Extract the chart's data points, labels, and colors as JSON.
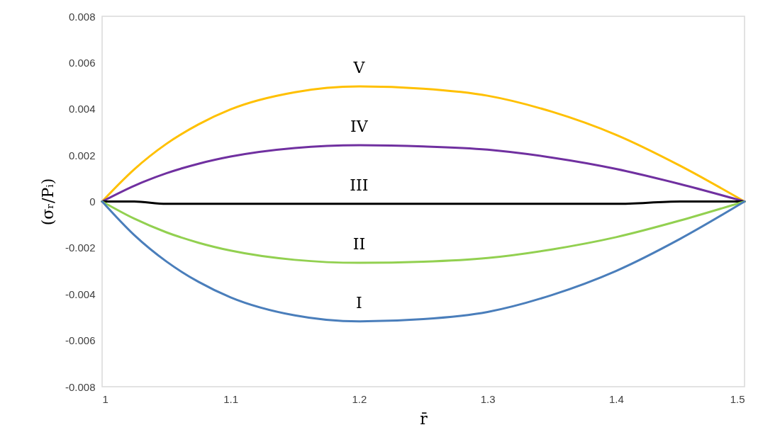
{
  "chart_data": {
    "type": "line",
    "xlabel": "r̄",
    "ylabel": "(σᵣ/Pᵢ)",
    "x": [
      1,
      1.025,
      1.05,
      1.075,
      1.1,
      1.15,
      1.2,
      1.25,
      1.3,
      1.35,
      1.4,
      1.45,
      1.5
    ],
    "series": [
      {
        "name": "V",
        "color": "#ffc000",
        "values": [
          0,
          0.00139,
          0.00249,
          0.00333,
          0.00398,
          0.00472,
          0.00497,
          0.00487,
          0.00457,
          0.00388,
          0.00288,
          0.00154,
          0
        ]
      },
      {
        "name": "IV",
        "color": "#7030a0",
        "values": [
          0,
          0.00068,
          0.00122,
          0.00163,
          0.00194,
          0.00231,
          0.00243,
          0.00238,
          0.00224,
          0.0019,
          0.00141,
          0.00075,
          0
        ]
      },
      {
        "name": "III",
        "color": "#000000",
        "values": [
          0,
          0,
          -0.0001,
          -0.0001,
          -0.0001,
          -0.0001,
          -0.0001,
          -0.0001,
          -0.0001,
          -0.0001,
          -0.0001,
          0,
          0
        ]
      },
      {
        "name": "II",
        "color": "#92d050",
        "values": [
          0,
          -0.00074,
          -0.00133,
          -0.00178,
          -0.00212,
          -0.00252,
          -0.00265,
          -0.0026,
          -0.00244,
          -0.00207,
          -0.00154,
          -0.00082,
          0
        ]
      },
      {
        "name": "I",
        "color": "#4a7ebb",
        "values": [
          0,
          -0.00145,
          -0.00259,
          -0.00347,
          -0.00414,
          -0.00492,
          -0.00518,
          -0.00508,
          -0.00477,
          -0.00404,
          -0.003,
          -0.00161,
          0
        ]
      }
    ],
    "xlim": [
      1,
      1.5
    ],
    "xticks": [
      1,
      1.1,
      1.2,
      1.3,
      1.4,
      1.5
    ],
    "ylim": [
      -0.008,
      0.008
    ],
    "yticks": [
      -0.008,
      -0.006,
      -0.004,
      -0.002,
      0,
      0.002,
      0.004,
      0.006,
      0.008
    ],
    "grid": false,
    "legend": false
  }
}
